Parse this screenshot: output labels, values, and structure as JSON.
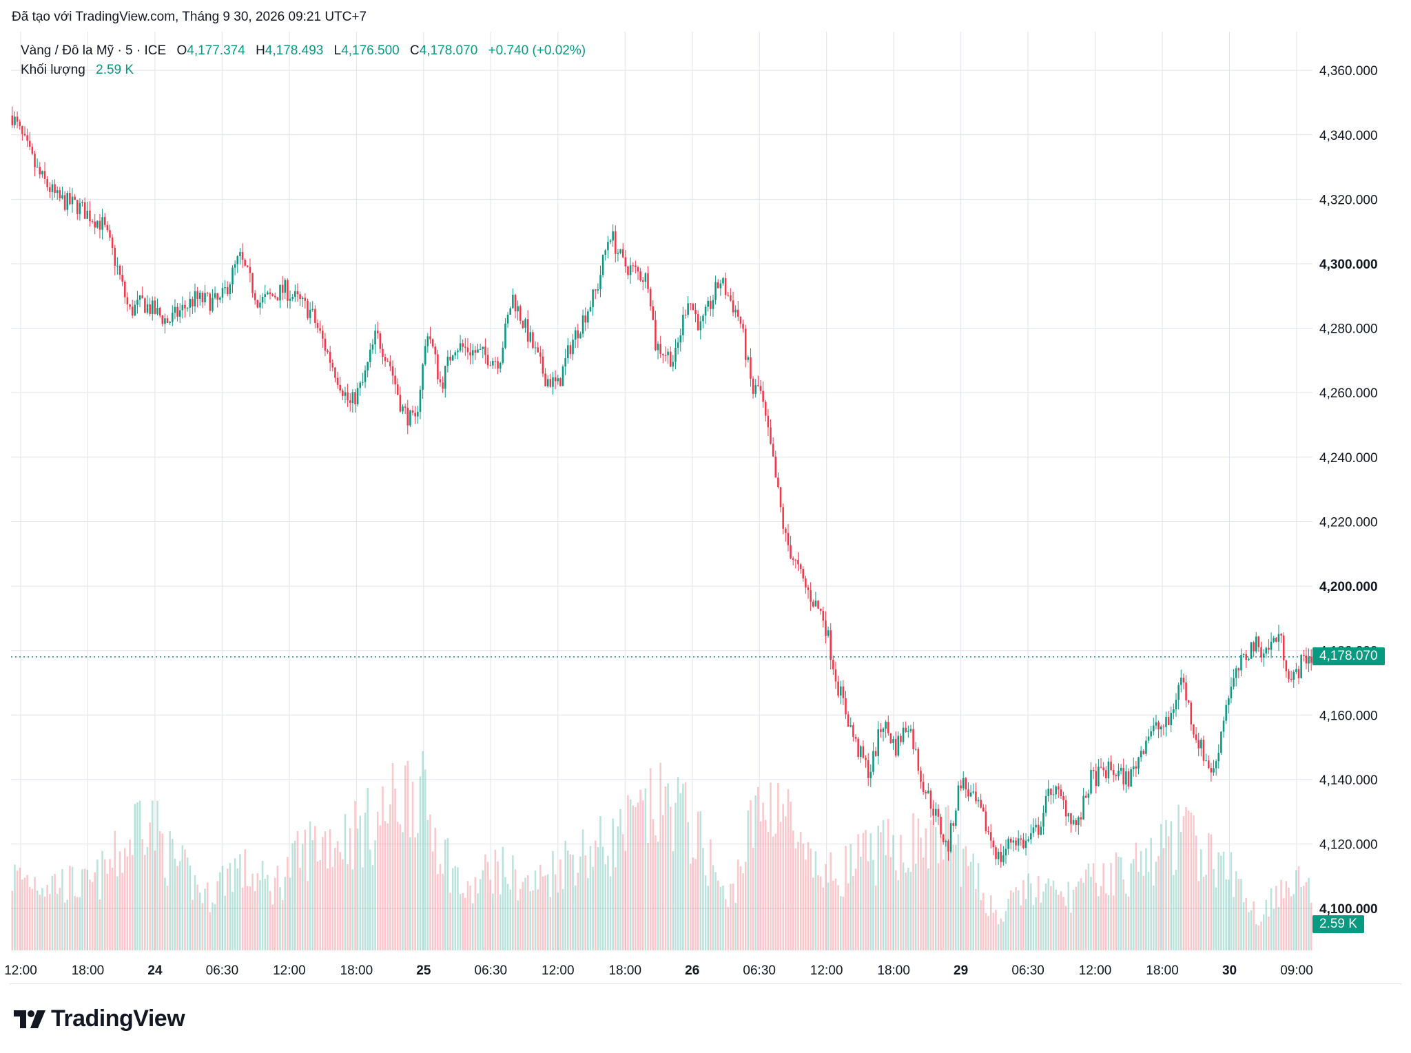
{
  "credit": "Đã tạo với TradingView.com, Tháng 9 30, 2026 09:21 UTC+7",
  "legend": {
    "symbol": "Vàng / Đô la Mỹ · 5 · ICE",
    "o_label": "O",
    "o_value": "4,177.374",
    "h_label": "H",
    "h_value": "4,178.493",
    "l_label": "L",
    "l_value": "4,176.500",
    "c_label": "C",
    "c_value": "4,178.070",
    "change": "+0.740 (+0.02%)",
    "volume_label": "Khối lượng",
    "volume_value": "2.59 K"
  },
  "price_tag": "4,178.070",
  "volume_tag": "2.59 K",
  "brand": "TradingView",
  "colors": {
    "up": "#089981",
    "down": "#f23645",
    "grid": "#e0e3eb",
    "text": "#131722"
  },
  "chart_data": {
    "type": "candlestick",
    "yaxis_ticks": [
      "4,360.000",
      "4,340.000",
      "4,320.000",
      "4,300.000",
      "4,280.000",
      "4,260.000",
      "4,240.000",
      "4,220.000",
      "4,200.000",
      "4,180.000",
      "4,160.000",
      "4,140.000",
      "4,120.000",
      "4,100.000"
    ],
    "yaxis_bold": [
      "4,300.000",
      "4,200.000",
      "4,100.000"
    ],
    "ylim": [
      4087,
      4372
    ],
    "xaxis_ticks": [
      {
        "label": "12:00",
        "bold": false
      },
      {
        "label": "18:00",
        "bold": false
      },
      {
        "label": "24",
        "bold": true
      },
      {
        "label": "06:30",
        "bold": false
      },
      {
        "label": "12:00",
        "bold": false
      },
      {
        "label": "18:00",
        "bold": false
      },
      {
        "label": "25",
        "bold": true
      },
      {
        "label": "06:30",
        "bold": false
      },
      {
        "label": "12:00",
        "bold": false
      },
      {
        "label": "18:00",
        "bold": false
      },
      {
        "label": "26",
        "bold": true
      },
      {
        "label": "06:30",
        "bold": false
      },
      {
        "label": "12:00",
        "bold": false
      },
      {
        "label": "18:00",
        "bold": false
      },
      {
        "label": "29",
        "bold": true
      },
      {
        "label": "06:30",
        "bold": false
      },
      {
        "label": "12:00",
        "bold": false
      },
      {
        "label": "18:00",
        "bold": false
      },
      {
        "label": "30",
        "bold": true
      },
      {
        "label": "09:00",
        "bold": false
      }
    ],
    "price_path": [
      [
        0,
        4346
      ],
      [
        0.02,
        4328
      ],
      [
        0.035,
        4320
      ],
      [
        0.05,
        4318
      ],
      [
        0.07,
        4312
      ],
      [
        0.08,
        4300
      ],
      [
        0.09,
        4285
      ],
      [
        0.1,
        4288
      ],
      [
        0.12,
        4282
      ],
      [
        0.14,
        4289
      ],
      [
        0.16,
        4288
      ],
      [
        0.175,
        4302
      ],
      [
        0.19,
        4288
      ],
      [
        0.21,
        4292
      ],
      [
        0.23,
        4285
      ],
      [
        0.245,
        4270
      ],
      [
        0.26,
        4256
      ],
      [
        0.27,
        4263
      ],
      [
        0.28,
        4278
      ],
      [
        0.29,
        4270
      ],
      [
        0.3,
        4255
      ],
      [
        0.31,
        4250
      ],
      [
        0.32,
        4280
      ],
      [
        0.33,
        4262
      ],
      [
        0.34,
        4275
      ],
      [
        0.36,
        4272
      ],
      [
        0.375,
        4270
      ],
      [
        0.385,
        4290
      ],
      [
        0.395,
        4280
      ],
      [
        0.41,
        4265
      ],
      [
        0.42,
        4262
      ],
      [
        0.43,
        4275
      ],
      [
        0.45,
        4292
      ],
      [
        0.46,
        4310
      ],
      [
        0.47,
        4300
      ],
      [
        0.49,
        4295
      ],
      [
        0.495,
        4275
      ],
      [
        0.51,
        4270
      ],
      [
        0.52,
        4290
      ],
      [
        0.53,
        4280
      ],
      [
        0.545,
        4295
      ],
      [
        0.56,
        4283
      ],
      [
        0.57,
        4260
      ],
      [
        0.575,
        4262
      ],
      [
        0.585,
        4240
      ],
      [
        0.595,
        4215
      ],
      [
        0.61,
        4200
      ],
      [
        0.625,
        4190
      ],
      [
        0.635,
        4170
      ],
      [
        0.65,
        4150
      ],
      [
        0.66,
        4142
      ],
      [
        0.67,
        4158
      ],
      [
        0.68,
        4150
      ],
      [
        0.69,
        4158
      ],
      [
        0.7,
        4140
      ],
      [
        0.71,
        4130
      ],
      [
        0.72,
        4118
      ],
      [
        0.73,
        4140
      ],
      [
        0.745,
        4130
      ],
      [
        0.76,
        4115
      ],
      [
        0.77,
        4122
      ],
      [
        0.78,
        4120
      ],
      [
        0.79,
        4125
      ],
      [
        0.8,
        4138
      ],
      [
        0.81,
        4132
      ],
      [
        0.82,
        4125
      ],
      [
        0.83,
        4140
      ],
      [
        0.845,
        4143
      ],
      [
        0.86,
        4140
      ],
      [
        0.875,
        4155
      ],
      [
        0.89,
        4157
      ],
      [
        0.9,
        4172
      ],
      [
        0.91,
        4155
      ],
      [
        0.92,
        4145
      ],
      [
        0.925,
        4142
      ],
      [
        0.935,
        4165
      ],
      [
        0.945,
        4175
      ],
      [
        0.955,
        4182
      ],
      [
        0.965,
        4180
      ],
      [
        0.975,
        4185
      ],
      [
        0.985,
        4170
      ],
      [
        0.995,
        4178
      ]
    ],
    "last_price": 4178.07,
    "volume_shape": [
      [
        0,
        0.35
      ],
      [
        0.06,
        0.3
      ],
      [
        0.09,
        0.5
      ],
      [
        0.1,
        0.7
      ],
      [
        0.12,
        0.45
      ],
      [
        0.15,
        0.25
      ],
      [
        0.17,
        0.4
      ],
      [
        0.2,
        0.3
      ],
      [
        0.23,
        0.5
      ],
      [
        0.26,
        0.55
      ],
      [
        0.28,
        0.6
      ],
      [
        0.31,
        0.8
      ],
      [
        0.33,
        0.5
      ],
      [
        0.35,
        0.25
      ],
      [
        0.37,
        0.4
      ],
      [
        0.4,
        0.3
      ],
      [
        0.43,
        0.45
      ],
      [
        0.46,
        0.5
      ],
      [
        0.49,
        0.65
      ],
      [
        0.51,
        0.7
      ],
      [
        0.54,
        0.4
      ],
      [
        0.55,
        0.2
      ],
      [
        0.57,
        0.6
      ],
      [
        0.59,
        0.75
      ],
      [
        0.61,
        0.4
      ],
      [
        0.63,
        0.35
      ],
      [
        0.66,
        0.45
      ],
      [
        0.69,
        0.5
      ],
      [
        0.72,
        0.55
      ],
      [
        0.74,
        0.35
      ],
      [
        0.76,
        0.15
      ],
      [
        0.78,
        0.3
      ],
      [
        0.81,
        0.25
      ],
      [
        0.84,
        0.35
      ],
      [
        0.87,
        0.4
      ],
      [
        0.9,
        0.55
      ],
      [
        0.92,
        0.45
      ],
      [
        0.94,
        0.35
      ],
      [
        0.96,
        0.15
      ],
      [
        0.98,
        0.35
      ],
      [
        1,
        0.3
      ]
    ]
  }
}
